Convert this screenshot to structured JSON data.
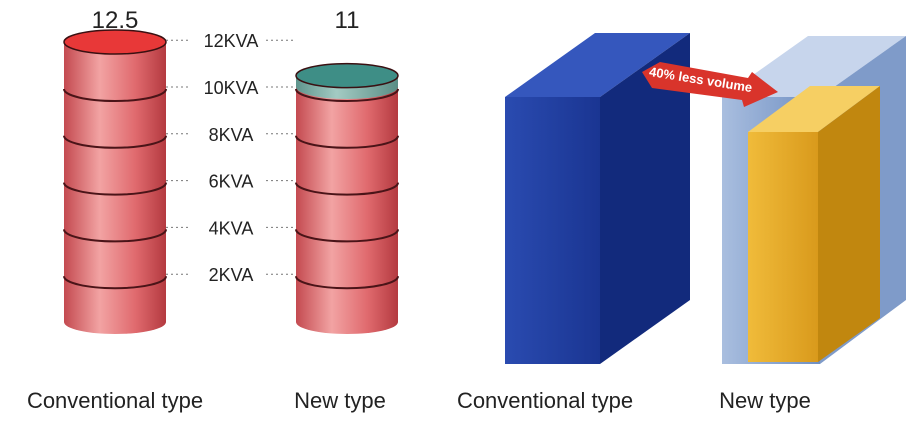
{
  "chart_data": {
    "type": "bar",
    "cylinder_chart": {
      "bars": [
        {
          "name": "Conventional type",
          "value_label": "12.5",
          "value": 12.5,
          "color": "#e06a6e",
          "top_color": "#e83838"
        },
        {
          "name": "New type",
          "value_label": "11",
          "value": 11,
          "color": "#e06a6e",
          "top_color": "#3e8e86",
          "upper_band_color": "#7fb0a8"
        }
      ],
      "scale_labels": [
        "2KVA",
        "4KVA",
        "6KVA",
        "8KVA",
        "10KVA",
        "12KVA"
      ],
      "scale_values": [
        2,
        4,
        6,
        8,
        10,
        12
      ]
    },
    "volume_comparison": {
      "items": [
        {
          "name": "Conventional type",
          "color": "#1f3fa0"
        },
        {
          "name": "New type",
          "color": "#e3a826",
          "outline_color": "#8ea6cc"
        }
      ],
      "arrow_label": "40% less volume",
      "arrow_color": "#d9342b"
    }
  }
}
